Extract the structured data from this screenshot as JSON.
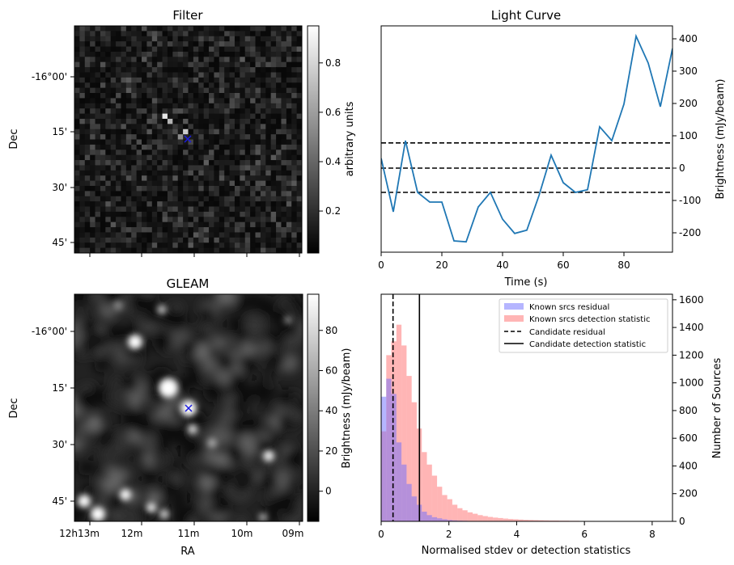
{
  "chart_data": [
    {
      "type": "image",
      "title": "Filter",
      "ylabel": "Dec",
      "yticks": [
        "-16°00'",
        "15'",
        "30'",
        "45'"
      ],
      "colorbar": {
        "label": "arbitrary units",
        "ticks": [
          "0.2",
          "0.4",
          "0.6",
          "0.8"
        ],
        "range": [
          0.03,
          0.95
        ]
      },
      "bright_pixels": [
        {
          "ra_col": 17,
          "dec_row": 17,
          "value": 0.9
        },
        {
          "ra_col": 18,
          "dec_row": 18,
          "value": 0.7
        },
        {
          "ra_col": 21,
          "dec_row": 20,
          "value": 0.8
        },
        {
          "ra_col": 20,
          "dec_row": 21,
          "value": 0.55
        }
      ],
      "marker": {
        "symbol": "x",
        "color": "#1b1be0"
      }
    },
    {
      "type": "line",
      "title": "Light Curve",
      "xlabel": "Time (s)",
      "ylabel": "Brightness (mJy/beam)",
      "xlim": [
        0,
        96
      ],
      "ylim": [
        -260,
        440
      ],
      "xticks": [
        0,
        20,
        40,
        60,
        80
      ],
      "yticks": [
        -200,
        -100,
        0,
        100,
        200,
        300,
        400
      ],
      "series": [
        {
          "color": "#1f77b4",
          "x": [
            0,
            4,
            8,
            12,
            16,
            20,
            24,
            28,
            32,
            36,
            40,
            44,
            48,
            52,
            56,
            60,
            64,
            68,
            72,
            76,
            80,
            84,
            88,
            92,
            96
          ],
          "values": [
            30,
            -135,
            85,
            -75,
            -105,
            -105,
            -225,
            -228,
            -120,
            -75,
            -158,
            -202,
            -192,
            -85,
            40,
            -45,
            -75,
            -67,
            128,
            85,
            198,
            408,
            325,
            190,
            370
          ]
        }
      ],
      "hlines": [
        {
          "y": 78,
          "style": "dashed"
        },
        {
          "y": 0,
          "style": "dashed"
        },
        {
          "y": -75,
          "style": "dashed"
        }
      ]
    },
    {
      "type": "image",
      "title": "GLEAM",
      "xlabel": "RA",
      "ylabel": "Dec",
      "xticks": [
        "12h13m",
        "12m",
        "11m",
        "10m",
        "09m"
      ],
      "yticks": [
        "-16°00'",
        "15'",
        "30'",
        "45'"
      ],
      "colorbar": {
        "label": "Brightness (mJy/beam)",
        "ticks": [
          "0",
          "20",
          "40",
          "60",
          "80"
        ],
        "range": [
          -15,
          98
        ]
      },
      "marker": {
        "symbol": "x",
        "color": "#1b1be0"
      }
    },
    {
      "type": "histogram",
      "xlabel": "Normalised stdev or detection statistics",
      "ylabel": "Number of Sources",
      "xlim": [
        0,
        8.6
      ],
      "ylim": [
        0,
        1640
      ],
      "xticks": [
        0,
        2,
        4,
        6,
        8
      ],
      "yticks": [
        0,
        200,
        400,
        600,
        800,
        1000,
        1200,
        1400,
        1600
      ],
      "bin_width": 0.15,
      "series": [
        {
          "name": "Known srcs residual",
          "color": "#6b6bff",
          "values": [
            900,
            1030,
            920,
            570,
            410,
            270,
            180,
            120,
            70,
            45,
            30,
            22,
            15,
            10,
            7,
            5,
            4,
            3,
            2,
            2,
            1,
            1,
            1,
            1,
            0,
            0,
            0,
            0,
            0,
            0,
            0,
            0,
            0,
            0,
            0,
            0,
            0,
            0,
            0,
            0,
            0,
            0,
            0,
            0,
            0,
            0,
            0,
            0,
            0,
            0,
            0,
            0,
            0,
            0,
            0,
            0,
            0
          ]
        },
        {
          "name": "Known srcs detection statistic",
          "color": "#ff6b6b",
          "values": [
            650,
            1200,
            1300,
            1420,
            1270,
            1050,
            860,
            670,
            500,
            410,
            330,
            250,
            190,
            160,
            120,
            95,
            80,
            65,
            55,
            45,
            38,
            32,
            27,
            24,
            20,
            17,
            15,
            13,
            11,
            10,
            9,
            8,
            7,
            6,
            6,
            5,
            5,
            4,
            4,
            3,
            3,
            3,
            2,
            2,
            2,
            2,
            1,
            1,
            1,
            1,
            1,
            1,
            1,
            1,
            1,
            1,
            1
          ]
        }
      ],
      "vlines": [
        {
          "name": "Candidate residual",
          "x": 0.35,
          "style": "dashed"
        },
        {
          "name": "Candidate detection statistic",
          "x": 1.13,
          "style": "solid"
        }
      ],
      "legend": "top-right"
    }
  ]
}
